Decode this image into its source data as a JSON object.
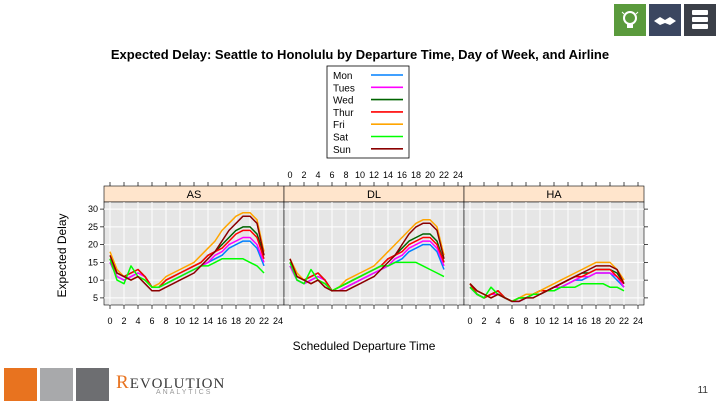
{
  "slide": {
    "page_number": "11"
  },
  "brand": {
    "logo_main_prefix": "R",
    "logo_main_rest": "EVOLUTION",
    "logo_sub": "ANALYTICS",
    "square_colors": [
      "#e8731f",
      "#a8a9ab",
      "#6d6e71"
    ]
  },
  "header_icons": [
    {
      "name": "lightbulb-icon",
      "color": "#5a9a3c"
    },
    {
      "name": "handshake-icon",
      "color": "#3b4660"
    },
    {
      "name": "server-stack-icon",
      "color": "#3b3f48"
    }
  ],
  "chart_data": {
    "type": "line",
    "title": "Expected Delay: Seattle to Honolulu by Departure Time, Day of Week, and Airline",
    "xlabel": "Scheduled Departure Time",
    "ylabel": "Expected Delay",
    "xlim": [
      0,
      24
    ],
    "ylim": [
      3,
      32
    ],
    "x_ticks": [
      0,
      2,
      4,
      6,
      8,
      10,
      12,
      14,
      16,
      18,
      20,
      22,
      24
    ],
    "y_ticks": [
      5,
      10,
      15,
      20,
      25,
      30
    ],
    "legend_position": "top-center",
    "x": [
      0,
      1,
      2,
      3,
      4,
      5,
      6,
      7,
      8,
      9,
      10,
      11,
      12,
      13,
      14,
      15,
      16,
      17,
      18,
      19,
      20,
      21,
      22
    ],
    "panels": [
      {
        "label": "AS",
        "series": [
          {
            "name": "Mon",
            "color": "#0080ff",
            "values": [
              15,
              11,
              10,
              11,
              12,
              11,
              8,
              8,
              9,
              10,
              11,
              12,
              13,
              14,
              15,
              16,
              17,
              19,
              20,
              21,
              21,
              19,
              14
            ]
          },
          {
            "name": "Tues",
            "color": "#ff00ff",
            "values": [
              15,
              11,
              10,
              11,
              12,
              11,
              8,
              8,
              9,
              10,
              11,
              12,
              13,
              14,
              15,
              17,
              18,
              20,
              21,
              22,
              22,
              20,
              15
            ]
          },
          {
            "name": "Wed",
            "color": "#006400",
            "values": [
              16,
              12,
              11,
              12,
              13,
              11,
              8,
              8,
              10,
              11,
              12,
              13,
              14,
              15,
              17,
              18,
              20,
              22,
              24,
              25,
              25,
              23,
              17
            ]
          },
          {
            "name": "Thur",
            "color": "#ff0000",
            "values": [
              16,
              12,
              11,
              12,
              13,
              11,
              8,
              8,
              10,
              11,
              12,
              13,
              14,
              15,
              17,
              18,
              19,
              21,
              23,
              24,
              24,
              22,
              16
            ]
          },
          {
            "name": "Fri",
            "color": "#ffa500",
            "values": [
              18,
              13,
              11,
              10,
              11,
              10,
              8,
              9,
              11,
              12,
              13,
              14,
              15,
              17,
              19,
              21,
              24,
              26,
              28,
              29,
              29,
              27,
              18
            ]
          },
          {
            "name": "Sat",
            "color": "#00ff00",
            "values": [
              16,
              10,
              9,
              14,
              11,
              10,
              8,
              8,
              9,
              10,
              11,
              12,
              13,
              14,
              14,
              15,
              16,
              16,
              16,
              16,
              15,
              14,
              12
            ]
          },
          {
            "name": "Sun",
            "color": "#8b0000",
            "values": [
              17,
              12,
              11,
              10,
              11,
              9,
              7,
              7,
              8,
              9,
              10,
              11,
              12,
              14,
              16,
              18,
              21,
              24,
              26,
              28,
              28,
              26,
              17
            ]
          }
        ]
      },
      {
        "label": "DL",
        "series": [
          {
            "name": "Mon",
            "color": "#0080ff",
            "values": [
              14,
              10,
              9,
              10,
              11,
              10,
              7,
              7,
              8,
              9,
              10,
              11,
              12,
              13,
              14,
              15,
              16,
              18,
              19,
              20,
              20,
              18,
              13
            ]
          },
          {
            "name": "Tues",
            "color": "#ff00ff",
            "values": [
              14,
              10,
              9,
              10,
              11,
              10,
              7,
              7,
              8,
              9,
              10,
              11,
              12,
              13,
              14,
              16,
              17,
              19,
              20,
              21,
              21,
              19,
              14
            ]
          },
          {
            "name": "Wed",
            "color": "#006400",
            "values": [
              15,
              11,
              10,
              11,
              12,
              10,
              7,
              8,
              9,
              10,
              11,
              12,
              13,
              14,
              16,
              17,
              19,
              21,
              22,
              23,
              23,
              21,
              15
            ]
          },
          {
            "name": "Thur",
            "color": "#ff0000",
            "values": [
              15,
              11,
              10,
              11,
              12,
              10,
              7,
              8,
              9,
              10,
              11,
              12,
              13,
              14,
              16,
              17,
              18,
              20,
              21,
              22,
              22,
              20,
              15
            ]
          },
          {
            "name": "Fri",
            "color": "#ffa500",
            "values": [
              16,
              12,
              10,
              9,
              10,
              9,
              7,
              8,
              10,
              11,
              12,
              13,
              14,
              16,
              18,
              20,
              22,
              24,
              26,
              27,
              27,
              25,
              17
            ]
          },
          {
            "name": "Sat",
            "color": "#00ff00",
            "values": [
              15,
              10,
              9,
              13,
              10,
              9,
              7,
              8,
              9,
              10,
              11,
              12,
              13,
              14,
              14,
              15,
              15,
              15,
              15,
              14,
              13,
              12,
              11
            ]
          },
          {
            "name": "Sun",
            "color": "#8b0000",
            "values": [
              16,
              11,
              10,
              9,
              10,
              8,
              7,
              7,
              7,
              8,
              9,
              10,
              11,
              13,
              15,
              17,
              20,
              23,
              25,
              26,
              26,
              24,
              16
            ]
          }
        ]
      },
      {
        "label": "HA",
        "series": [
          {
            "name": "Mon",
            "color": "#0080ff",
            "values": [
              8,
              6,
              5,
              6,
              6,
              5,
              4,
              4,
              5,
              6,
              6,
              7,
              7,
              8,
              9,
              10,
              10,
              11,
              12,
              12,
              12,
              10,
              8
            ]
          },
          {
            "name": "Tues",
            "color": "#ff00ff",
            "values": [
              8,
              6,
              5,
              6,
              6,
              5,
              4,
              4,
              5,
              6,
              6,
              7,
              8,
              8,
              9,
              10,
              11,
              11,
              12,
              12,
              12,
              11,
              8
            ]
          },
          {
            "name": "Wed",
            "color": "#006400",
            "values": [
              9,
              6,
              5,
              6,
              7,
              5,
              4,
              5,
              5,
              6,
              7,
              7,
              8,
              9,
              10,
              11,
              12,
              12,
              13,
              13,
              13,
              12,
              9
            ]
          },
          {
            "name": "Thur",
            "color": "#ff0000",
            "values": [
              9,
              6,
              5,
              6,
              7,
              5,
              4,
              5,
              5,
              6,
              7,
              7,
              8,
              9,
              10,
              11,
              11,
              12,
              13,
              13,
              13,
              11,
              9
            ]
          },
          {
            "name": "Fri",
            "color": "#ffa500",
            "values": [
              9,
              7,
              6,
              5,
              6,
              5,
              4,
              5,
              6,
              6,
              7,
              8,
              9,
              10,
              11,
              12,
              13,
              14,
              15,
              15,
              15,
              13,
              10
            ]
          },
          {
            "name": "Sat",
            "color": "#00ff00",
            "values": [
              8,
              6,
              5,
              8,
              6,
              5,
              4,
              5,
              5,
              6,
              6,
              7,
              7,
              8,
              8,
              8,
              9,
              9,
              9,
              9,
              8,
              8,
              7
            ]
          },
          {
            "name": "Sun",
            "color": "#8b0000",
            "values": [
              9,
              7,
              6,
              5,
              6,
              5,
              4,
              4,
              5,
              5,
              6,
              7,
              8,
              9,
              10,
              11,
              12,
              13,
              14,
              14,
              14,
              13,
              9
            ]
          }
        ]
      }
    ]
  }
}
